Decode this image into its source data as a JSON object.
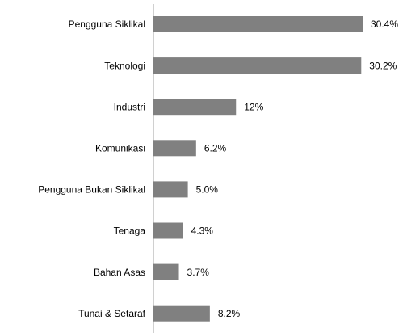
{
  "chart_data": {
    "type": "bar",
    "orientation": "horizontal",
    "categories": [
      "Pengguna Siklikal",
      "Teknologi",
      "Industri",
      "Komunikasi",
      "Pengguna Bukan Siklikal",
      "Tenaga",
      "Bahan Asas",
      "Tunai & Setaraf"
    ],
    "values": [
      30.4,
      30.2,
      12,
      6.2,
      5.0,
      4.3,
      3.7,
      8.2
    ],
    "value_labels": [
      "30.4%",
      "30.2%",
      "12%",
      "6.2%",
      "5.0%",
      "4.3%",
      "3.7%",
      "8.2%"
    ],
    "color": "#808080"
  }
}
